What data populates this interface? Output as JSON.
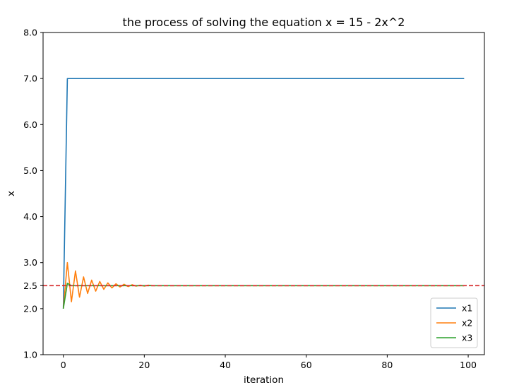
{
  "chart_data": {
    "type": "line",
    "title": "the process of solving the equation x = 15 - 2x^2",
    "xlabel": "iteration",
    "ylabel": "x",
    "xlim": [
      -5,
      104
    ],
    "ylim": [
      1.0,
      8.0
    ],
    "xticks": [
      0,
      20,
      40,
      60,
      80,
      100
    ],
    "xtick_labels": [
      "0",
      "20",
      "40",
      "60",
      "80",
      "100"
    ],
    "yticks": [
      1.0,
      2.0,
      2.5,
      3.0,
      4.0,
      5.0,
      6.0,
      7.0,
      8.0
    ],
    "ytick_labels": [
      "1.0",
      "2.0",
      "2.5",
      "3.0",
      "4.0",
      "5.0",
      "6.0",
      "7.0",
      "8.0"
    ],
    "grid": false,
    "legend_position": "lower-right",
    "reference_line": {
      "y": 2.5,
      "color": "#d62728",
      "style": "dashed"
    },
    "series": [
      {
        "name": "x1",
        "color": "#1f77b4",
        "x": [
          0,
          1,
          99
        ],
        "y": [
          2.0,
          7.0,
          7.0
        ]
      },
      {
        "name": "x2",
        "color": "#ff7f0e",
        "x": [
          0,
          1,
          2,
          3,
          4,
          5,
          6,
          7,
          8,
          9,
          10,
          11,
          12,
          13,
          14,
          15,
          16,
          17,
          18,
          19,
          20,
          21,
          22,
          23,
          24,
          25,
          99
        ],
        "y": [
          2.0,
          3.0,
          2.15,
          2.82,
          2.25,
          2.69,
          2.33,
          2.62,
          2.38,
          2.59,
          2.42,
          2.56,
          2.45,
          2.54,
          2.47,
          2.53,
          2.48,
          2.52,
          2.49,
          2.51,
          2.49,
          2.51,
          2.5,
          2.5,
          2.5,
          2.5,
          2.5
        ]
      },
      {
        "name": "x3",
        "color": "#2ca02c",
        "x": [
          0,
          1,
          2,
          3,
          99
        ],
        "y": [
          2.0,
          2.55,
          2.5,
          2.5,
          2.5
        ]
      }
    ]
  }
}
